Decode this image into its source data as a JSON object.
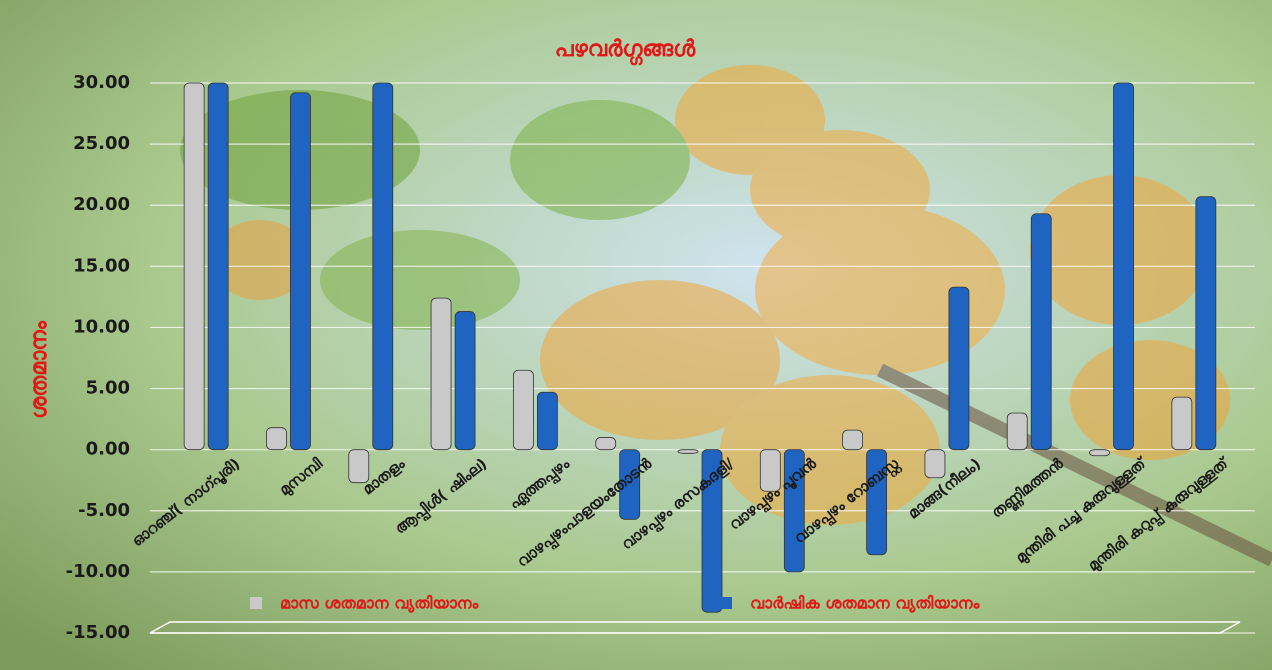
{
  "chart_data": {
    "type": "bar",
    "title": "പഴവർഗ്ഗങ്ങൾ",
    "y_label": "ശതമാനം",
    "categories": [
      "ഓറഞ്ച്( നാഗ്പൂരി)",
      "മുസമ്പി",
      "മാതളം",
      "ആപ്പിൾ( ഷിംല)",
      "ഏത്തപ്പഴം",
      "വാഴപ്പഴംപാളയംതോടൻ",
      "വാഴപ്പഴം രസകദളി/",
      "വാഴപ്പഴം പൂവൻ",
      "വാഴപ്പഴം റോബസ്റ്റ",
      "മാങ്ങ(നീലം)",
      "തണ്ണിമത്തൻ",
      "മുന്തിരി പച്ച കുരുവുള്ളത്",
      "മുന്തിരി കറുപ്പ് കുരുവുള്ളത്"
    ],
    "series": [
      {
        "name": "മാസ ശതമാന വ്യതിയാനം",
        "color": "#c9c9c9",
        "values": [
          30,
          1.8,
          -2.7,
          12.4,
          6.5,
          1.0,
          -0.3,
          -3.4,
          1.6,
          -2.3,
          3.0,
          -0.5,
          4.3
        ]
      },
      {
        "name": "വാർഷിക ശതമാന വ്യതിയാനം",
        "color": "#1f64c0",
        "values": [
          30,
          29.2,
          30,
          11.3,
          4.7,
          -5.7,
          -13.3,
          -10.0,
          -8.6,
          13.3,
          19.3,
          30,
          20.7
        ]
      }
    ],
    "ylim": [
      -15,
      30
    ],
    "yticks": [
      {
        "value": -15,
        "label": "-15.00"
      },
      {
        "value": -10,
        "label": "-10.00"
      },
      {
        "value": -5,
        "label": "-5.00"
      },
      {
        "value": 0,
        "label": "0.00"
      },
      {
        "value": 5,
        "label": "5.00"
      },
      {
        "value": 10,
        "label": "10.00"
      },
      {
        "value": 15,
        "label": "15.00"
      },
      {
        "value": 20,
        "label": "20.00"
      },
      {
        "value": 25,
        "label": "25.00"
      },
      {
        "value": 30,
        "label": "30.00"
      }
    ],
    "grid": true,
    "legend_position": "bottom"
  }
}
